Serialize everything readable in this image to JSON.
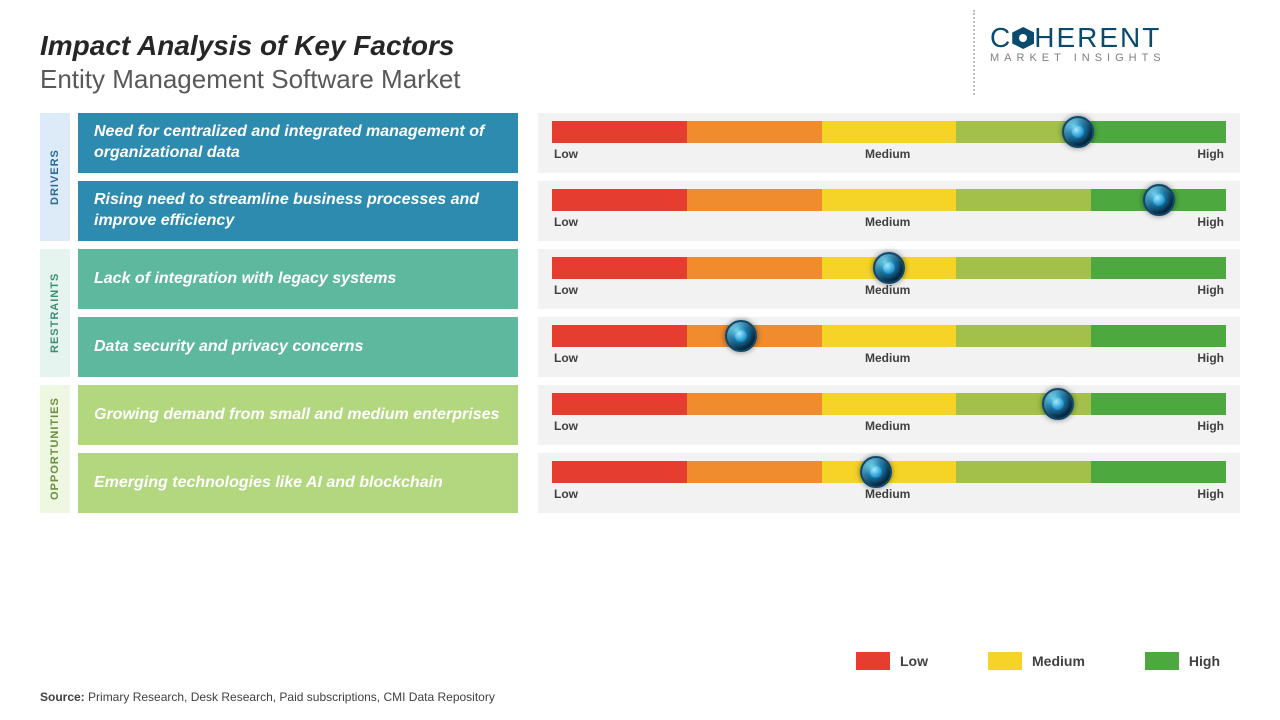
{
  "meta": {
    "title": "Impact Analysis of Key Factors",
    "subtitle": "Entity Management Software Market",
    "logo_main": "C",
    "logo_rest": "HERENT",
    "logo_sub": "MARKET INSIGHTS",
    "source_label": "Source:",
    "source_text": " Primary Research, Desk Research, Paid subscriptions, CMI Data Repository"
  },
  "scale": {
    "labels": {
      "low": "Low",
      "medium": "Medium",
      "high": "High"
    },
    "segment_colors": [
      "#e53e30",
      "#f08c2e",
      "#f5d327",
      "#a3c14a",
      "#4da83f"
    ]
  },
  "categories": [
    {
      "name": "DRIVERS",
      "tab_bg": "#dcebf7",
      "tab_color": "#2e6b94",
      "box_bg": "#2e8bb0",
      "factors": [
        {
          "label": "Need for centralized and integrated management of organizational data",
          "marker_pct": 78
        },
        {
          "label": "Rising need to streamline business processes and improve efficiency",
          "marker_pct": 90
        }
      ]
    },
    {
      "name": "RESTRAINTS",
      "tab_bg": "#e6f4ef",
      "tab_color": "#3c8f77",
      "box_bg": "#5db89e",
      "factors": [
        {
          "label": "Lack of integration with legacy systems",
          "marker_pct": 50
        },
        {
          "label": "Data security and privacy concerns",
          "marker_pct": 28
        }
      ]
    },
    {
      "name": "OPPORTUNITIES",
      "tab_bg": "#eef7e2",
      "tab_color": "#6b8f3c",
      "box_bg": "#b2d77e",
      "factors": [
        {
          "label": "Growing demand from small and medium enterprises",
          "marker_pct": 75
        },
        {
          "label": "Emerging technologies like AI and blockchain",
          "marker_pct": 48
        }
      ]
    }
  ],
  "legend": [
    {
      "label": "Low",
      "color": "#e53e30"
    },
    {
      "label": "Medium",
      "color": "#f5d327"
    },
    {
      "label": "High",
      "color": "#4da83f"
    }
  ]
}
